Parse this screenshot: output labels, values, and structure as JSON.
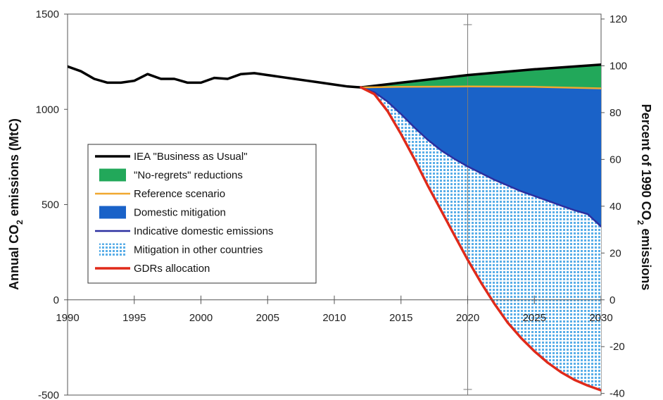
{
  "chart_data": {
    "type": "area",
    "title": "",
    "ylabel_left": {
      "main": "Annual CO",
      "sub": "2",
      "rest": " emissions (MtC)"
    },
    "ylabel_right": {
      "main": "Percent of 1990 CO",
      "sub": "2",
      "rest": " emissions"
    },
    "xlim": [
      1990,
      2030
    ],
    "ylim": [
      -500,
      1500
    ],
    "ylim_right_percent": [
      -40.7,
      122.1
    ],
    "x_ticks": [
      "1990",
      "1995",
      "2000",
      "2005",
      "2010",
      "2015",
      "2020",
      "2025",
      "2030"
    ],
    "y_ticks_left": [
      "-500",
      "0",
      "500",
      "1000",
      "1500"
    ],
    "y_ticks_right": [
      "-40",
      "-20",
      "0",
      "20",
      "40",
      "60",
      "80",
      "100",
      "120"
    ],
    "grid": "vertical line at 2020",
    "legend_position": "center-left",
    "legend": [
      {
        "label": "IEA \"Business as Usual\"",
        "symbol": "line",
        "color": "#000000"
      },
      {
        "label": "\"No-regrets\" reductions",
        "symbol": "patch",
        "color": "#22a85a"
      },
      {
        "label": "Reference scenario",
        "symbol": "line",
        "color": "#f0a830"
      },
      {
        "label": "Domestic mitigation",
        "symbol": "patch",
        "color": "#1a62c8"
      },
      {
        "label": "Indicative domestic emissions",
        "symbol": "line",
        "color": "#2b2fa0"
      },
      {
        "label": "Mitigation in other countries",
        "symbol": "hatch",
        "color": "#5aaee8"
      },
      {
        "label": "GDRs allocation",
        "symbol": "line",
        "color": "#e02a1a"
      }
    ],
    "series": [
      {
        "name": "IEA \"Business as Usual\"",
        "color": "#000000",
        "x": [
          1990,
          1991,
          1992,
          1993,
          1994,
          1995,
          1996,
          1997,
          1998,
          1999,
          2000,
          2001,
          2002,
          2003,
          2004,
          2005,
          2006,
          2007,
          2008,
          2009,
          2010,
          2011,
          2012,
          2015,
          2020,
          2025,
          2030
        ],
        "y": [
          1225,
          1200,
          1160,
          1140,
          1140,
          1150,
          1185,
          1160,
          1160,
          1140,
          1140,
          1165,
          1160,
          1185,
          1190,
          1180,
          1170,
          1160,
          1150,
          1140,
          1130,
          1120,
          1115,
          1140,
          1180,
          1210,
          1235
        ]
      },
      {
        "name": "Reference scenario",
        "color": "#f0a830",
        "x": [
          2012,
          2015,
          2020,
          2025,
          2030
        ],
        "y": [
          1115,
          1118,
          1120,
          1118,
          1110
        ]
      },
      {
        "name": "Indicative domestic emissions",
        "color": "#2b2fa0",
        "x": [
          2012,
          2013,
          2014,
          2015,
          2016,
          2017,
          2018,
          2019,
          2020,
          2021,
          2022,
          2023,
          2024,
          2025,
          2026,
          2027,
          2028,
          2029,
          2030
        ],
        "y": [
          1115,
          1090,
          1040,
          975,
          905,
          840,
          785,
          740,
          700,
          665,
          630,
          600,
          570,
          545,
          520,
          495,
          470,
          450,
          385
        ]
      },
      {
        "name": "GDRs allocation",
        "color": "#e02a1a",
        "x": [
          2012,
          2013,
          2014,
          2015,
          2016,
          2017,
          2018,
          2019,
          2020,
          2021,
          2022,
          2023,
          2024,
          2025,
          2026,
          2027,
          2028,
          2029,
          2030
        ],
        "y": [
          1115,
          1080,
          990,
          870,
          740,
          600,
          470,
          340,
          210,
          90,
          -20,
          -120,
          -200,
          -270,
          -330,
          -380,
          -420,
          -450,
          -475
        ]
      }
    ],
    "areas": [
      {
        "name": "\"No-regrets\" reductions",
        "between": [
          "IEA \"Business as Usual\"",
          "Reference scenario"
        ],
        "color": "#22a85a"
      },
      {
        "name": "Domestic mitigation",
        "between": [
          "Reference scenario",
          "Indicative domestic emissions"
        ],
        "color": "#1a62c8"
      },
      {
        "name": "Mitigation in other countries",
        "between": [
          "Indicative domestic emissions",
          "GDRs allocation"
        ],
        "color": "#5aaee8"
      }
    ]
  }
}
